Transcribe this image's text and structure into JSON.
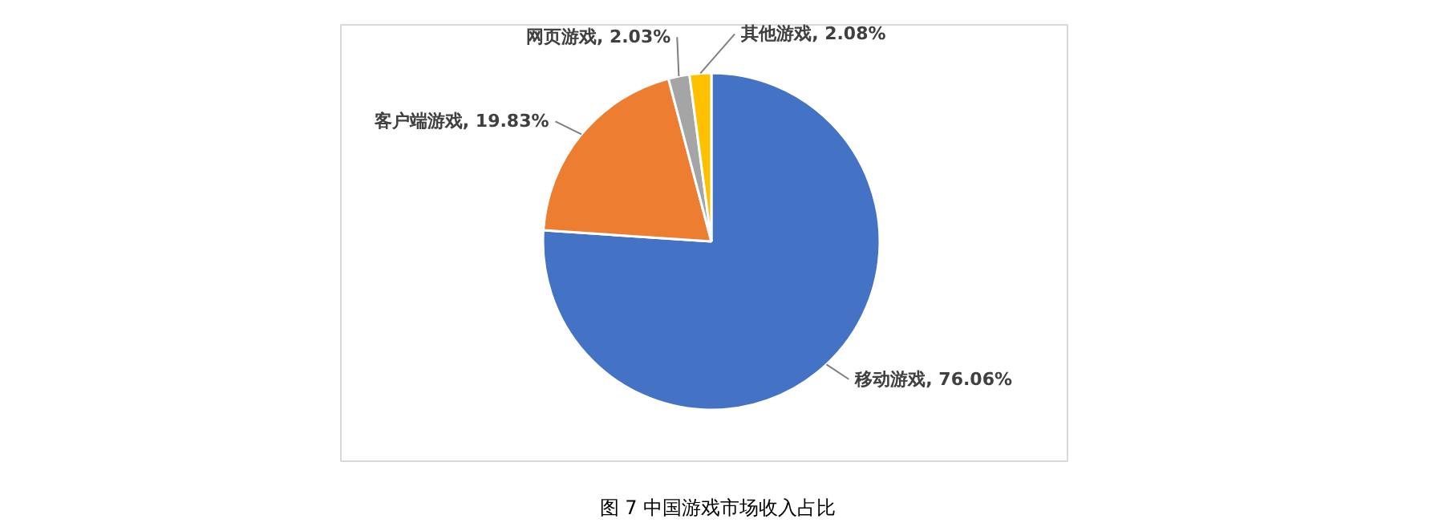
{
  "chart_data": {
    "type": "pie",
    "title": "图 7 中国游戏市场收入占比",
    "categories": [
      "移动游戏",
      "客户端游戏",
      "网页游戏",
      "其他游戏"
    ],
    "values": [
      76.06,
      19.83,
      2.03,
      2.08
    ],
    "value_labels": [
      "76.06%",
      "19.83%",
      "2.03%",
      "2.08%"
    ],
    "colors": [
      "#4472c4",
      "#ed7d31",
      "#a5a5a5",
      "#ffc000"
    ]
  }
}
